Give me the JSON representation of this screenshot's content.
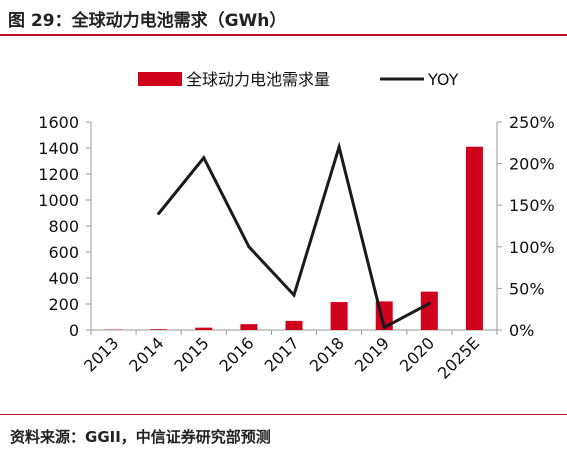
{
  "header": {
    "title": "图 29：全球动力电池需求（GWh）"
  },
  "footer": {
    "source": "资料来源：GGII，中信证券研究部预测"
  },
  "chart_data": {
    "type": "bar",
    "categories": [
      "2013",
      "2014",
      "2015",
      "2016",
      "2017",
      "2018",
      "2019",
      "2020",
      "2025E"
    ],
    "series": [
      {
        "name": "全球动力电池需求量",
        "type": "bar",
        "axis": "left",
        "values": [
          3,
          6,
          18,
          45,
          70,
          215,
          220,
          295,
          1410
        ],
        "color": "#d0021b"
      },
      {
        "name": "YOY",
        "type": "line",
        "axis": "right",
        "values": [
          null,
          1.4,
          2.07,
          1.0,
          0.42,
          2.2,
          0.03,
          0.32,
          null
        ],
        "color": "#1a1a1a"
      }
    ],
    "y_left": {
      "ylim": [
        0,
        1600
      ],
      "ticks": [
        "0",
        "200",
        "400",
        "600",
        "800",
        "1000",
        "1200",
        "1400",
        "1600"
      ]
    },
    "y_right": {
      "ylim": [
        0,
        2.5
      ],
      "ticks": [
        "0%",
        "50%",
        "100%",
        "150%",
        "200%",
        "250%"
      ]
    },
    "legend_position": "top",
    "grid": false
  }
}
